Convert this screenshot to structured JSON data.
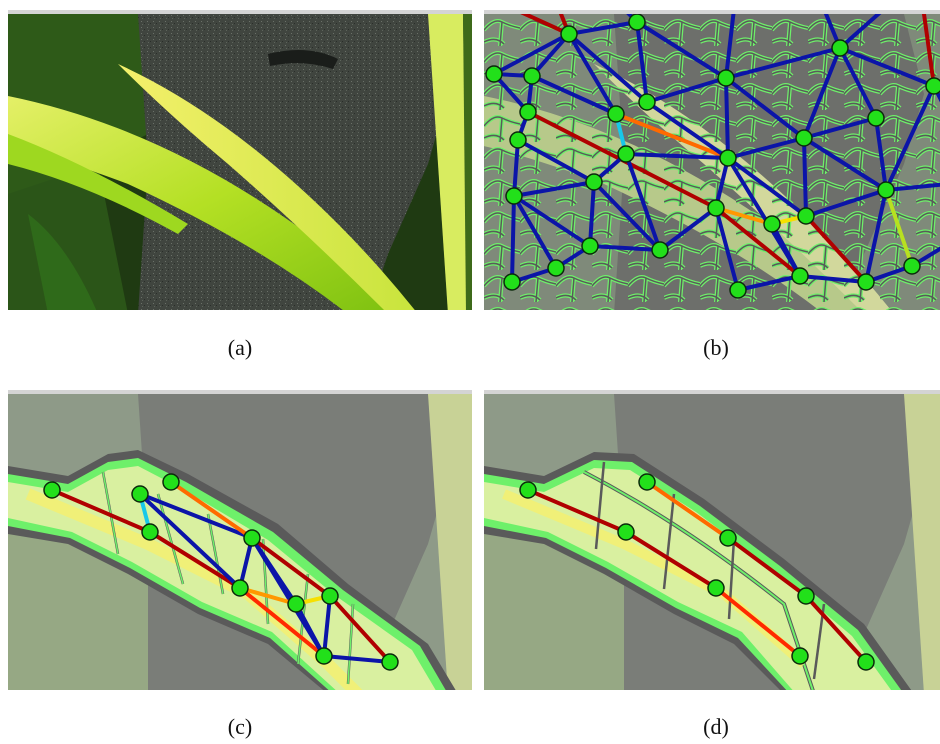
{
  "captions": {
    "a": "(a)",
    "b": "(b)",
    "c": "(c)",
    "d": "(d)"
  },
  "colors": {
    "node_fill": "#22e01a",
    "graph_edge_blue": "#0b14a8",
    "graph_edge_red": "#b00000",
    "graph_edge_orange": "#ff6a00",
    "superpixel_border_green": "#6ef06a",
    "superpixel_border_gray": "#5a5a5a",
    "leaf_green": "#9adf18",
    "leaf_yellow": "#f0f07a",
    "stone_gray": "#474b47"
  }
}
